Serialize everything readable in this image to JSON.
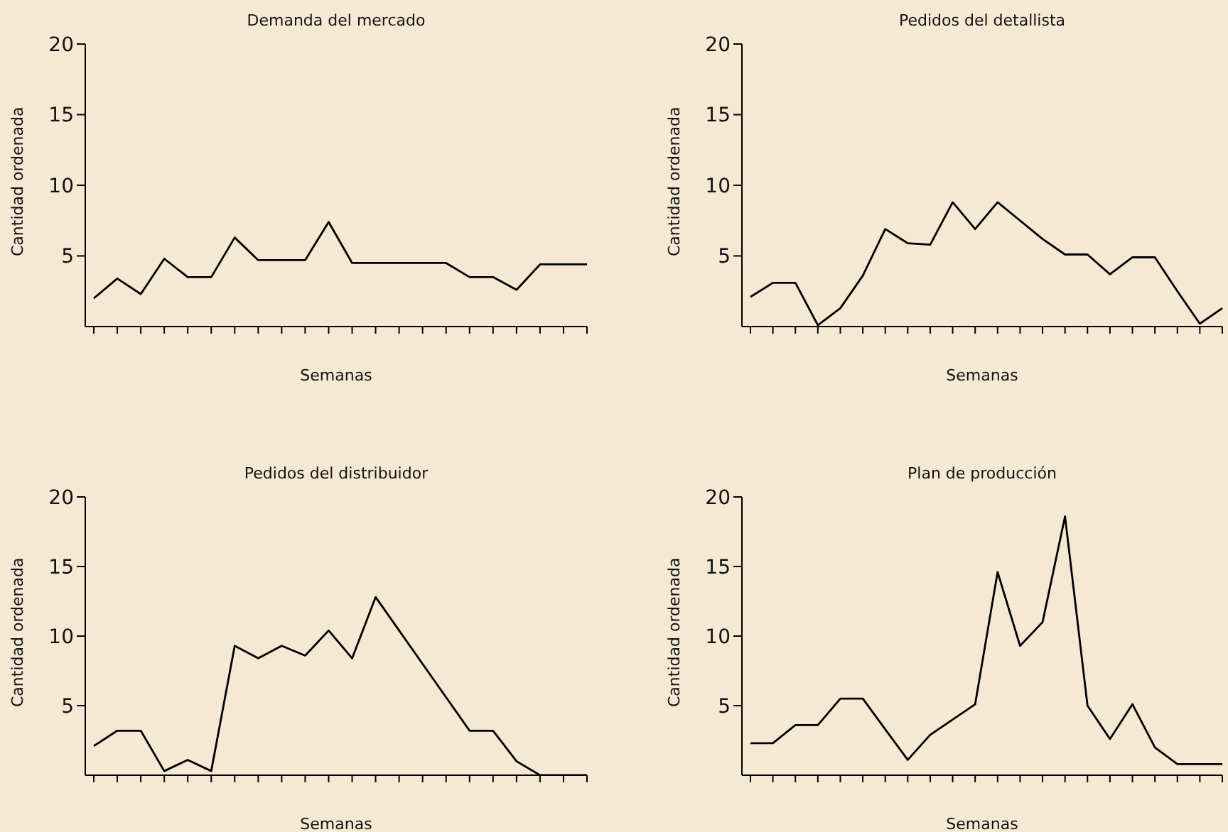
{
  "chart_data": [
    {
      "type": "line",
      "title": "Demanda del mercado",
      "xlabel": "Semanas",
      "ylabel": "Cantidad ordenada",
      "categories": [
        null,
        null,
        null,
        null,
        null,
        null,
        null,
        null,
        null,
        null,
        null,
        null,
        null,
        null,
        null,
        null,
        null,
        null,
        null,
        null,
        null,
        null
      ],
      "series": [
        {
          "color": "#000000",
          "values": [
            2.0,
            3.4,
            2.3,
            4.8,
            3.5,
            3.5,
            6.3,
            4.7,
            4.7,
            4.7,
            7.4,
            4.5,
            4.5,
            4.5,
            4.5,
            4.5,
            3.5,
            3.5,
            2.6,
            4.4,
            4.4,
            4.4
          ]
        }
      ],
      "ylim": [
        0,
        20
      ],
      "yticks": [
        5,
        10,
        15,
        20
      ],
      "tick_labels": "y",
      "grid": false,
      "marker": "none",
      "line_style": "solid"
    },
    {
      "type": "line",
      "title": "Pedidos del detallista",
      "xlabel": "Semanas",
      "ylabel": "Cantidad ordenada",
      "categories": [
        null,
        null,
        null,
        null,
        null,
        null,
        null,
        null,
        null,
        null,
        null,
        null,
        null,
        null,
        null,
        null,
        null,
        null,
        null,
        null,
        null,
        null
      ],
      "series": [
        {
          "color": "#000000",
          "values": [
            2.1,
            3.1,
            3.1,
            0.1,
            1.3,
            3.6,
            6.9,
            5.9,
            5.8,
            8.8,
            6.9,
            8.8,
            7.5,
            6.2,
            5.1,
            5.1,
            3.7,
            4.9,
            4.9,
            2.5,
            0.2,
            1.3
          ]
        }
      ],
      "ylim": [
        0,
        20
      ],
      "yticks": [
        5,
        10,
        15,
        20
      ],
      "tick_labels": "y",
      "grid": false,
      "marker": "none",
      "line_style": "solid"
    },
    {
      "type": "line",
      "title": "Pedidos del distribuidor",
      "xlabel": "Semanas",
      "ylabel": "Cantidad ordenada",
      "categories": [
        null,
        null,
        null,
        null,
        null,
        null,
        null,
        null,
        null,
        null,
        null,
        null,
        null,
        null,
        null,
        null,
        null,
        null,
        null,
        null,
        null,
        null
      ],
      "series": [
        {
          "color": "#000000",
          "values": [
            2.1,
            3.2,
            3.2,
            0.3,
            1.1,
            0.3,
            9.3,
            8.4,
            9.3,
            8.6,
            10.4,
            8.4,
            12.8,
            10.4,
            8.0,
            5.6,
            3.2,
            3.2,
            1.0,
            0,
            0,
            0
          ]
        }
      ],
      "ylim": [
        0,
        20
      ],
      "yticks": [
        5,
        10,
        15,
        20
      ],
      "tick_labels": "y",
      "grid": false,
      "marker": "none",
      "line_style": "solid"
    },
    {
      "type": "line",
      "title": "Plan de producción",
      "xlabel": "Semanas",
      "ylabel": "Cantidad ordenada",
      "categories": [
        null,
        null,
        null,
        null,
        null,
        null,
        null,
        null,
        null,
        null,
        null,
        null,
        null,
        null,
        null,
        null,
        null,
        null,
        null,
        null,
        null,
        null
      ],
      "series": [
        {
          "color": "#000000",
          "values": [
            2.3,
            2.3,
            3.6,
            3.6,
            5.5,
            5.5,
            3.3,
            1.1,
            2.9,
            4.0,
            5.1,
            14.6,
            9.3,
            11.0,
            18.6,
            5.0,
            2.6,
            5.1,
            2.0,
            0.8,
            0.8,
            0.8
          ]
        }
      ],
      "ylim": [
        0,
        20
      ],
      "yticks": [
        5,
        10,
        15,
        20
      ],
      "tick_labels": "y",
      "grid": false,
      "marker": "none",
      "line_style": "solid"
    }
  ]
}
